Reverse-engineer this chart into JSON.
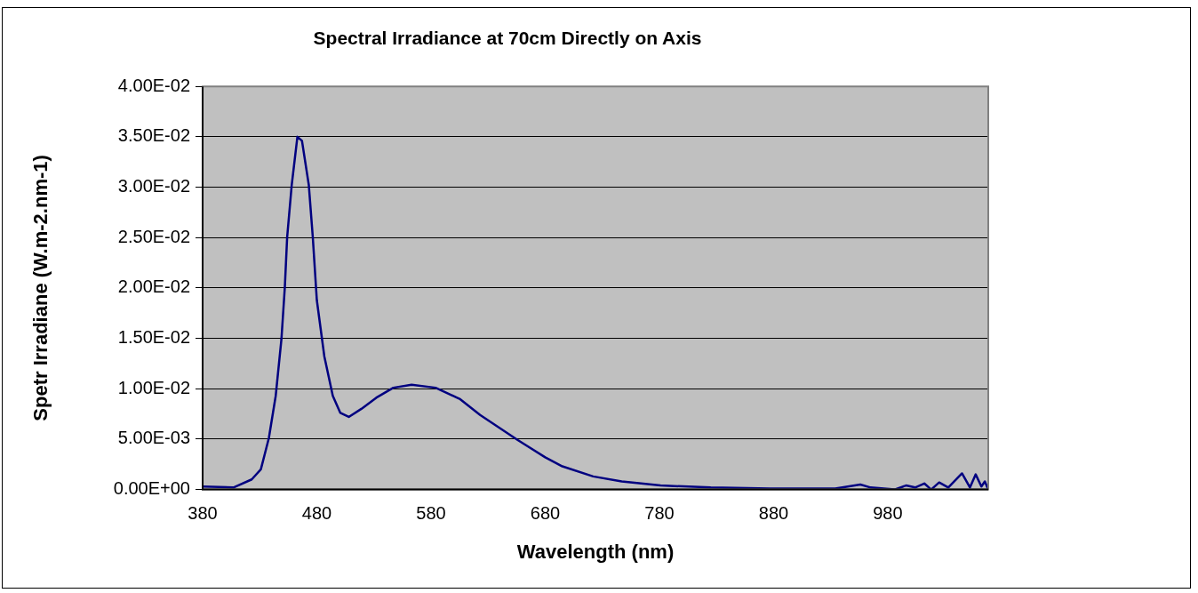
{
  "chart_data": {
    "type": "line",
    "title": "Spectral Irradiance at 70cm Directly on Axis",
    "xlabel": "Wavelength (nm)",
    "ylabel": "Spetr Irradiane (W.m-2.nm-1)",
    "x": [
      380,
      407,
      423,
      431,
      438,
      444,
      449,
      452,
      454,
      458,
      463,
      467,
      473,
      476.5,
      480,
      486.6,
      494,
      500.6,
      508,
      519,
      532,
      547,
      563,
      584,
      605,
      623,
      656,
      680,
      695,
      722,
      747,
      781,
      825,
      877,
      934,
      956,
      965,
      986,
      996,
      1004,
      1012,
      1018,
      1025,
      1033,
      1039,
      1045,
      1052,
      1057,
      1062,
      1065,
      1068
    ],
    "series": [
      {
        "color": "#000080",
        "values": [
          0.0003,
          0.0002,
          0.001,
          0.002,
          0.0051,
          0.0093,
          0.0149,
          0.0201,
          0.025,
          0.0302,
          0.035,
          0.0346,
          0.0302,
          0.025,
          0.0188,
          0.0132,
          0.0093,
          0.0076,
          0.0072,
          0.008,
          0.0091,
          0.0101,
          0.0104,
          0.0101,
          0.009,
          0.0074,
          0.0049,
          0.0032,
          0.0023,
          0.0013,
          0.0008,
          0.0004,
          0.0002,
          0.0001,
          0.0001,
          0.0005,
          0.0002,
          0,
          0.0004,
          0.0002,
          0.0006,
          0,
          0.0007,
          0.0002,
          0.0009,
          0.0016,
          0.0002,
          0.0015,
          0.0003,
          0.0008,
          0
        ]
      }
    ],
    "xlim": [
      380,
      1068
    ],
    "xticks": [
      380,
      480,
      580,
      680,
      780,
      880,
      980
    ],
    "ylim": [
      0,
      0.04
    ],
    "yticks": [
      {
        "value": 0,
        "label": "0.00E+00"
      },
      {
        "value": 0.005,
        "label": "5.00E-03"
      },
      {
        "value": 0.01,
        "label": "1.00E-02"
      },
      {
        "value": 0.015,
        "label": "1.50E-02"
      },
      {
        "value": 0.02,
        "label": "2.00E-02"
      },
      {
        "value": 0.025,
        "label": "2.50E-02"
      },
      {
        "value": 0.03,
        "label": "3.00E-02"
      },
      {
        "value": 0.035,
        "label": "3.50E-02"
      },
      {
        "value": 0.04,
        "label": "4.00E-02"
      }
    ],
    "grid": "y",
    "legend": false,
    "marker": "none",
    "line_style": "solid"
  }
}
